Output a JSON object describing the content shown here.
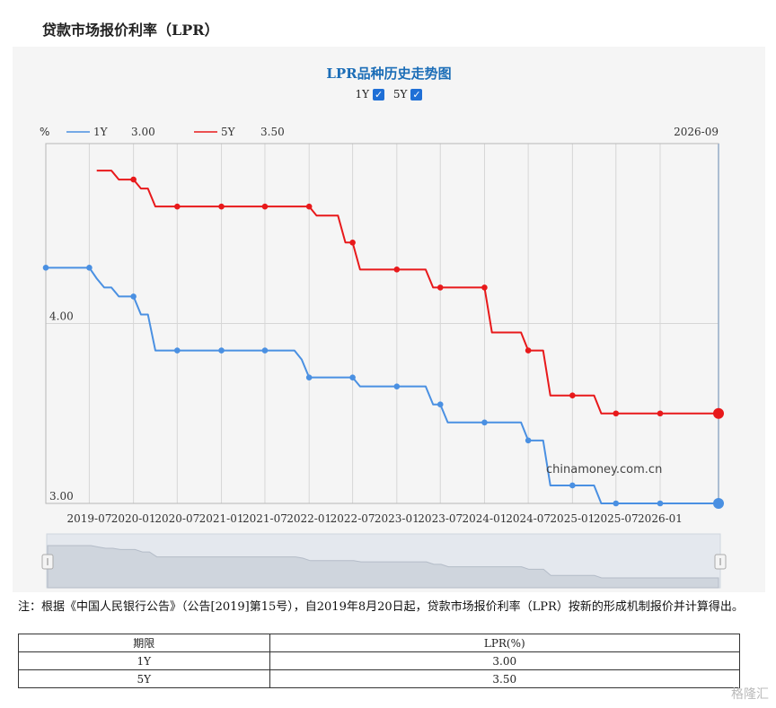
{
  "page_title": "贷款市场报价利率（LPR）",
  "chart_data": {
    "type": "line",
    "title": "LPR品种历史走势图",
    "ylabel": "%",
    "ylim": [
      3.0,
      5.0
    ],
    "y_ticks": [
      "4.00",
      "3.00"
    ],
    "x_ticks": [
      "2019-07",
      "2020-01",
      "2020-07",
      "2021-01",
      "2021-07",
      "2022-01",
      "2022-07",
      "2023-01",
      "2023-07",
      "2024-01",
      "2024-07",
      "2025-01",
      "2025-07",
      "2026-01"
    ],
    "cursor_date": "2026-09",
    "annotation": "chinamoney.com.cn",
    "grid": true,
    "toggles": [
      {
        "label": "1Y",
        "checked": true
      },
      {
        "label": "5Y",
        "checked": true
      }
    ],
    "series": [
      {
        "name": "1Y",
        "color": "#4a90e2",
        "legend_value": "3.00",
        "points": [
          [
            "2019-01-01",
            4.31
          ],
          [
            "2019-07-01",
            4.31
          ],
          [
            "2019-08-01",
            4.25
          ],
          [
            "2019-09-01",
            4.2
          ],
          [
            "2019-10-01",
            4.2
          ],
          [
            "2019-11-01",
            4.15
          ],
          [
            "2020-01-01",
            4.15
          ],
          [
            "2020-02-01",
            4.05
          ],
          [
            "2020-03-01",
            4.05
          ],
          [
            "2020-04-01",
            3.85
          ],
          [
            "2020-07-01",
            3.85
          ],
          [
            "2021-01-01",
            3.85
          ],
          [
            "2021-07-01",
            3.85
          ],
          [
            "2021-11-01",
            3.85
          ],
          [
            "2021-12-01",
            3.8
          ],
          [
            "2022-01-01",
            3.7
          ],
          [
            "2022-07-01",
            3.7
          ],
          [
            "2022-08-01",
            3.65
          ],
          [
            "2023-01-01",
            3.65
          ],
          [
            "2023-05-01",
            3.65
          ],
          [
            "2023-06-01",
            3.55
          ],
          [
            "2023-07-01",
            3.55
          ],
          [
            "2023-08-01",
            3.45
          ],
          [
            "2024-01-01",
            3.45
          ],
          [
            "2024-06-01",
            3.45
          ],
          [
            "2024-07-01",
            3.35
          ],
          [
            "2024-09-01",
            3.35
          ],
          [
            "2024-10-01",
            3.1
          ],
          [
            "2025-01-01",
            3.1
          ],
          [
            "2025-04-01",
            3.1
          ],
          [
            "2025-05-01",
            3.0
          ],
          [
            "2025-07-01",
            3.0
          ],
          [
            "2026-01-01",
            3.0
          ],
          [
            "2026-08-01",
            3.0
          ],
          [
            "2026-09-01",
            3.0
          ]
        ]
      },
      {
        "name": "5Y",
        "color": "#e8191b",
        "legend_value": "3.50",
        "points": [
          [
            "2019-08-01",
            4.85
          ],
          [
            "2019-10-01",
            4.85
          ],
          [
            "2019-11-01",
            4.8
          ],
          [
            "2020-01-01",
            4.8
          ],
          [
            "2020-02-01",
            4.75
          ],
          [
            "2020-03-01",
            4.75
          ],
          [
            "2020-04-01",
            4.65
          ],
          [
            "2020-07-01",
            4.65
          ],
          [
            "2021-01-01",
            4.65
          ],
          [
            "2021-07-01",
            4.65
          ],
          [
            "2022-01-01",
            4.65
          ],
          [
            "2022-02-01",
            4.6
          ],
          [
            "2022-05-01",
            4.6
          ],
          [
            "2022-06-01",
            4.45
          ],
          [
            "2022-07-01",
            4.45
          ],
          [
            "2022-08-01",
            4.3
          ],
          [
            "2023-01-01",
            4.3
          ],
          [
            "2023-05-01",
            4.3
          ],
          [
            "2023-06-01",
            4.2
          ],
          [
            "2023-07-01",
            4.2
          ],
          [
            "2024-01-01",
            4.2
          ],
          [
            "2024-02-01",
            3.95
          ],
          [
            "2024-06-01",
            3.95
          ],
          [
            "2024-07-01",
            3.85
          ],
          [
            "2024-09-01",
            3.85
          ],
          [
            "2024-10-01",
            3.6
          ],
          [
            "2025-01-01",
            3.6
          ],
          [
            "2025-04-01",
            3.6
          ],
          [
            "2025-05-01",
            3.5
          ],
          [
            "2025-07-01",
            3.5
          ],
          [
            "2026-01-01",
            3.5
          ],
          [
            "2026-08-01",
            3.5
          ],
          [
            "2026-09-01",
            3.5
          ]
        ]
      }
    ]
  },
  "note": "注：根据《中国人民银行公告》（公告[2019]第15号），自2019年8月20日起，贷款市场报价利率（LPR）按新的形成机制报价并计算得出。",
  "table": {
    "headers": [
      "期限",
      "LPR(%)"
    ],
    "rows": [
      [
        "1Y",
        "3.00"
      ],
      [
        "5Y",
        "3.50"
      ]
    ]
  },
  "watermark": "格隆汇"
}
